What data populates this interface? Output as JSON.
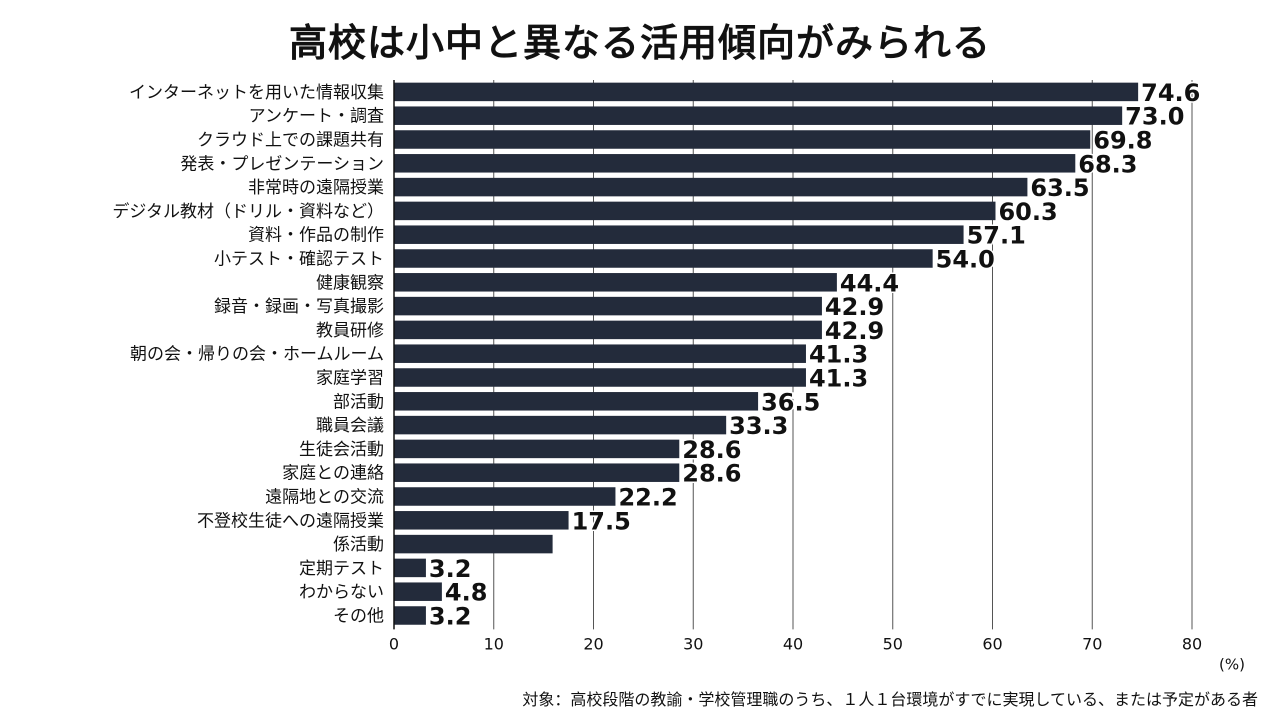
{
  "title": "高校は小中と異なる活用傾向がみられる",
  "footnote": "対象：高校段階の教諭・学校管理職のうち、１人１台環境がすでに実現している、または予定がある者",
  "chart_data": {
    "type": "bar",
    "orientation": "horizontal",
    "title": "高校は小中と異なる活用傾向がみられる",
    "unit": "(%)",
    "xlim": [
      0,
      80
    ],
    "x_ticks": [
      "0",
      "10",
      "20",
      "30",
      "40",
      "50",
      "60",
      "70",
      "80"
    ],
    "grid": "vertical",
    "bar_color": "#232b3b",
    "categories": [
      "インターネットを用いた情報収集",
      "アンケート・調査",
      "クラウド上での課題共有",
      "発表・プレゼンテーション",
      "非常時の遠隔授業",
      "デジタル教材（ドリル・資料など）",
      "資料・作品の制作",
      "小テスト・確認テスト",
      "健康観察",
      "録音・録画・写真撮影",
      "教員研修",
      "朝の会・帰りの会・ホームルーム",
      "家庭学習",
      "部活動",
      "職員会議",
      "生徒会活動",
      "家庭との連絡",
      "遠隔地との交流",
      "不登校生徒への遠隔授業",
      "係活動",
      "定期テスト",
      "わからない",
      "その他"
    ],
    "values": [
      74.6,
      73.0,
      69.8,
      68.3,
      63.5,
      60.3,
      57.1,
      54.0,
      44.4,
      42.9,
      42.9,
      41.3,
      41.3,
      36.5,
      33.3,
      28.6,
      28.6,
      22.2,
      17.5,
      15.9,
      3.2,
      4.8,
      3.2
    ],
    "value_labels": [
      "74.6",
      "73.0",
      "69.8",
      "68.3",
      "63.5",
      "60.3",
      "57.1",
      "54.0",
      "44.4",
      "42.9",
      "42.9",
      "41.3",
      "41.3",
      "36.5",
      "33.3",
      "28.6",
      "28.6",
      "22.2",
      "17.5",
      "",
      "3.2",
      "4.8",
      "3.2"
    ]
  }
}
